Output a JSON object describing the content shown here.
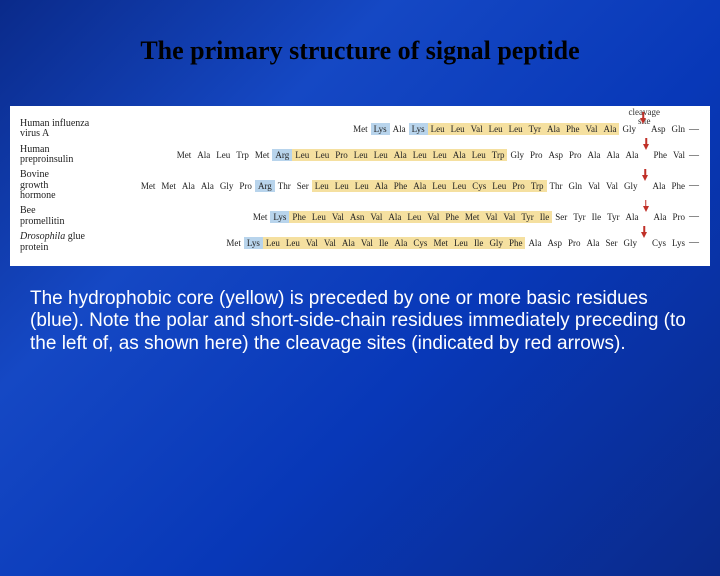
{
  "title": "The primary structure of signal peptide",
  "cleavage_label": "cleavage\nsite",
  "caption": "The hydrophobic core (yellow) is preceded by one or more basic residues (blue). Note the polar and short-side-chain residues immediately preceding (to the left of, as shown here) the cleavage sites (indicated by red arrows).",
  "colors": {
    "basic_bg": "#b8d4ec",
    "hydro_bg": "#f5e0a0",
    "arrow": "#c03028",
    "panel_bg": "#ffffff",
    "slide_bg_gradient": [
      "#0a2a8a",
      "#1548c4",
      "#0838b8",
      "#0a2a8a"
    ],
    "title_color": "#000000",
    "caption_color": "#ffffff"
  },
  "fonts": {
    "title": {
      "family": "Times New Roman",
      "size_pt": 26,
      "weight": "bold"
    },
    "protein_name": {
      "family": "Times New Roman",
      "size_pt": 10
    },
    "residue": {
      "family": "Times New Roman",
      "size_pt": 9
    },
    "caption": {
      "family": "Arial",
      "size_pt": 19
    }
  },
  "legend": {
    "basic": "blue background = basic residue",
    "hydro": "yellow background = hydrophobic core"
  },
  "proteins": [
    {
      "name_html": "Human influenza<br>virus A",
      "residues": [
        {
          "t": "Met",
          "k": ""
        },
        {
          "t": "Lys",
          "k": "basic"
        },
        {
          "t": "Ala",
          "k": ""
        },
        {
          "t": "Lys",
          "k": "basic"
        },
        {
          "t": "Leu",
          "k": "hydro"
        },
        {
          "t": "Leu",
          "k": "hydro"
        },
        {
          "t": "Val",
          "k": "hydro"
        },
        {
          "t": "Leu",
          "k": "hydro"
        },
        {
          "t": "Leu",
          "k": "hydro"
        },
        {
          "t": "Tyr",
          "k": "hydro"
        },
        {
          "t": "Ala",
          "k": "hydro"
        },
        {
          "t": "Phe",
          "k": "hydro"
        },
        {
          "t": "Val",
          "k": "hydro"
        },
        {
          "t": "Ala",
          "k": "hydro"
        },
        {
          "t": "Gly",
          "k": ""
        },
        {
          "arrow": true
        },
        {
          "t": "Asp",
          "k": ""
        },
        {
          "t": "Gln",
          "k": ""
        },
        {
          "dash": true
        }
      ]
    },
    {
      "name_html": "Human<br>preproinsulin",
      "residues": [
        {
          "t": "Met",
          "k": ""
        },
        {
          "t": "Ala",
          "k": ""
        },
        {
          "t": "Leu",
          "k": ""
        },
        {
          "t": "Trp",
          "k": ""
        },
        {
          "t": "Met",
          "k": ""
        },
        {
          "t": "Arg",
          "k": "basic"
        },
        {
          "t": "Leu",
          "k": "hydro"
        },
        {
          "t": "Leu",
          "k": "hydro"
        },
        {
          "t": "Pro",
          "k": "hydro"
        },
        {
          "t": "Leu",
          "k": "hydro"
        },
        {
          "t": "Leu",
          "k": "hydro"
        },
        {
          "t": "Ala",
          "k": "hydro"
        },
        {
          "t": "Leu",
          "k": "hydro"
        },
        {
          "t": "Leu",
          "k": "hydro"
        },
        {
          "t": "Ala",
          "k": "hydro"
        },
        {
          "t": "Leu",
          "k": "hydro"
        },
        {
          "t": "Trp",
          "k": "hydro"
        },
        {
          "t": "Gly",
          "k": ""
        },
        {
          "t": "Pro",
          "k": ""
        },
        {
          "t": "Asp",
          "k": ""
        },
        {
          "t": "Pro",
          "k": ""
        },
        {
          "t": "Ala",
          "k": ""
        },
        {
          "t": "Ala",
          "k": ""
        },
        {
          "t": "Ala",
          "k": ""
        },
        {
          "arrow": true
        },
        {
          "t": "Phe",
          "k": ""
        },
        {
          "t": "Val",
          "k": ""
        },
        {
          "dash": true
        }
      ]
    },
    {
      "name_html": "Bovine<br>growth<br>hormone",
      "residues": [
        {
          "t": "Met",
          "k": ""
        },
        {
          "t": "Met",
          "k": ""
        },
        {
          "t": "Ala",
          "k": ""
        },
        {
          "t": "Ala",
          "k": ""
        },
        {
          "t": "Gly",
          "k": ""
        },
        {
          "t": "Pro",
          "k": ""
        },
        {
          "t": "Arg",
          "k": "basic"
        },
        {
          "t": "Thr",
          "k": ""
        },
        {
          "t": "Ser",
          "k": ""
        },
        {
          "t": "Leu",
          "k": "hydro"
        },
        {
          "t": "Leu",
          "k": "hydro"
        },
        {
          "t": "Leu",
          "k": "hydro"
        },
        {
          "t": "Ala",
          "k": "hydro"
        },
        {
          "t": "Phe",
          "k": "hydro"
        },
        {
          "t": "Ala",
          "k": "hydro"
        },
        {
          "t": "Leu",
          "k": "hydro"
        },
        {
          "t": "Leu",
          "k": "hydro"
        },
        {
          "t": "Cys",
          "k": "hydro"
        },
        {
          "t": "Leu",
          "k": "hydro"
        },
        {
          "t": "Pro",
          "k": "hydro"
        },
        {
          "t": "Trp",
          "k": "hydro"
        },
        {
          "t": "Thr",
          "k": ""
        },
        {
          "t": "Gln",
          "k": ""
        },
        {
          "t": "Val",
          "k": ""
        },
        {
          "t": "Val",
          "k": ""
        },
        {
          "t": "Gly",
          "k": ""
        },
        {
          "arrow": true
        },
        {
          "t": "Ala",
          "k": ""
        },
        {
          "t": "Phe",
          "k": ""
        },
        {
          "dash": true
        }
      ]
    },
    {
      "name_html": "Bee<br>promellitin",
      "residues": [
        {
          "t": "Met",
          "k": ""
        },
        {
          "t": "Lys",
          "k": "basic"
        },
        {
          "t": "Phe",
          "k": "hydro"
        },
        {
          "t": "Leu",
          "k": "hydro"
        },
        {
          "t": "Val",
          "k": "hydro"
        },
        {
          "t": "Asn",
          "k": "hydro"
        },
        {
          "t": "Val",
          "k": "hydro"
        },
        {
          "t": "Ala",
          "k": "hydro"
        },
        {
          "t": "Leu",
          "k": "hydro"
        },
        {
          "t": "Val",
          "k": "hydro"
        },
        {
          "t": "Phe",
          "k": "hydro"
        },
        {
          "t": "Met",
          "k": "hydro"
        },
        {
          "t": "Val",
          "k": "hydro"
        },
        {
          "t": "Val",
          "k": "hydro"
        },
        {
          "t": "Tyr",
          "k": "hydro"
        },
        {
          "t": "Ile",
          "k": "hydro"
        },
        {
          "t": "Ser",
          "k": ""
        },
        {
          "t": "Tyr",
          "k": ""
        },
        {
          "t": "Ile",
          "k": ""
        },
        {
          "t": "Tyr",
          "k": ""
        },
        {
          "t": "Ala",
          "k": ""
        },
        {
          "arrow": true
        },
        {
          "t": "Ala",
          "k": ""
        },
        {
          "t": "Pro",
          "k": ""
        },
        {
          "dash": true
        }
      ]
    },
    {
      "name_html": "<span class='italic'>Drosophila</span> glue<br>protein",
      "residues": [
        {
          "t": "Met",
          "k": ""
        },
        {
          "t": "Lys",
          "k": "basic"
        },
        {
          "t": "Leu",
          "k": "hydro"
        },
        {
          "t": "Leu",
          "k": "hydro"
        },
        {
          "t": "Val",
          "k": "hydro"
        },
        {
          "t": "Val",
          "k": "hydro"
        },
        {
          "t": "Ala",
          "k": "hydro"
        },
        {
          "t": "Val",
          "k": "hydro"
        },
        {
          "t": "Ile",
          "k": "hydro"
        },
        {
          "t": "Ala",
          "k": "hydro"
        },
        {
          "t": "Cys",
          "k": "hydro"
        },
        {
          "t": "Met",
          "k": "hydro"
        },
        {
          "t": "Leu",
          "k": "hydro"
        },
        {
          "t": "Ile",
          "k": "hydro"
        },
        {
          "t": "Gly",
          "k": "hydro"
        },
        {
          "t": "Phe",
          "k": "hydro"
        },
        {
          "t": "Ala",
          "k": ""
        },
        {
          "t": "Asp",
          "k": ""
        },
        {
          "t": "Pro",
          "k": ""
        },
        {
          "t": "Ala",
          "k": ""
        },
        {
          "t": "Ser",
          "k": ""
        },
        {
          "t": "Gly",
          "k": ""
        },
        {
          "arrow": true
        },
        {
          "t": "Cys",
          "k": ""
        },
        {
          "t": "Lys",
          "k": ""
        },
        {
          "dash": true
        }
      ]
    }
  ]
}
